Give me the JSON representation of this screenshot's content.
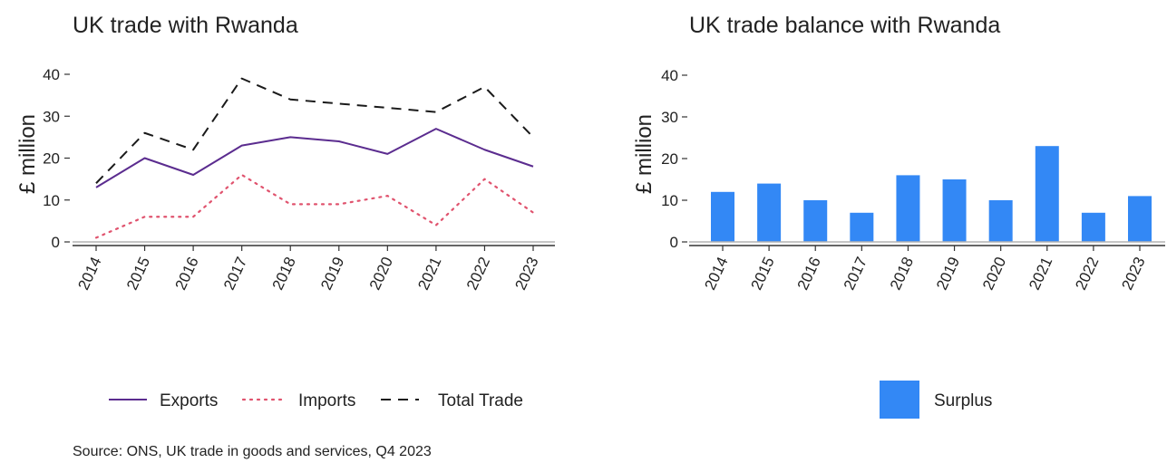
{
  "source": "Source: ONS, UK trade in goods and services, Q4 2023",
  "colors": {
    "exports": "#5B2C8F",
    "imports": "#E0536E",
    "total": "#1a1a1a",
    "surplus": "#3388F5",
    "axis": "#333333",
    "zero_line": "#b3b3b3"
  },
  "chart_data": [
    {
      "type": "line",
      "title": "UK trade with Rwanda",
      "ylabel": "£ million",
      "xlabel": "",
      "x": [
        "2014",
        "2015",
        "2016",
        "2017",
        "2018",
        "2019",
        "2020",
        "2021",
        "2022",
        "2023"
      ],
      "ylim": [
        0,
        40
      ],
      "yticks": [
        "0",
        "10",
        "20",
        "30",
        "40"
      ],
      "grid": false,
      "legend": "bottom",
      "series": [
        {
          "name": "Exports",
          "style": "solid",
          "values": [
            13,
            20,
            16,
            23,
            25,
            24,
            21,
            27,
            22,
            18
          ]
        },
        {
          "name": "Imports",
          "style": "dotted",
          "values": [
            1,
            6,
            6,
            16,
            9,
            9,
            11,
            4,
            15,
            7
          ]
        },
        {
          "name": "Total Trade",
          "style": "dashed",
          "values": [
            14,
            26,
            22,
            39,
            34,
            33,
            32,
            31,
            37,
            25
          ]
        }
      ]
    },
    {
      "type": "bar",
      "title": "UK trade balance with Rwanda",
      "ylabel": "£ million",
      "xlabel": "",
      "categories": [
        "2014",
        "2015",
        "2016",
        "2017",
        "2018",
        "2019",
        "2020",
        "2021",
        "2022",
        "2023"
      ],
      "ylim": [
        0,
        40
      ],
      "yticks": [
        "0",
        "10",
        "20",
        "30",
        "40"
      ],
      "grid": false,
      "legend": "bottom",
      "series": [
        {
          "name": "Surplus",
          "values": [
            12,
            14,
            10,
            7,
            16,
            15,
            10,
            23,
            7,
            11
          ]
        }
      ]
    }
  ]
}
